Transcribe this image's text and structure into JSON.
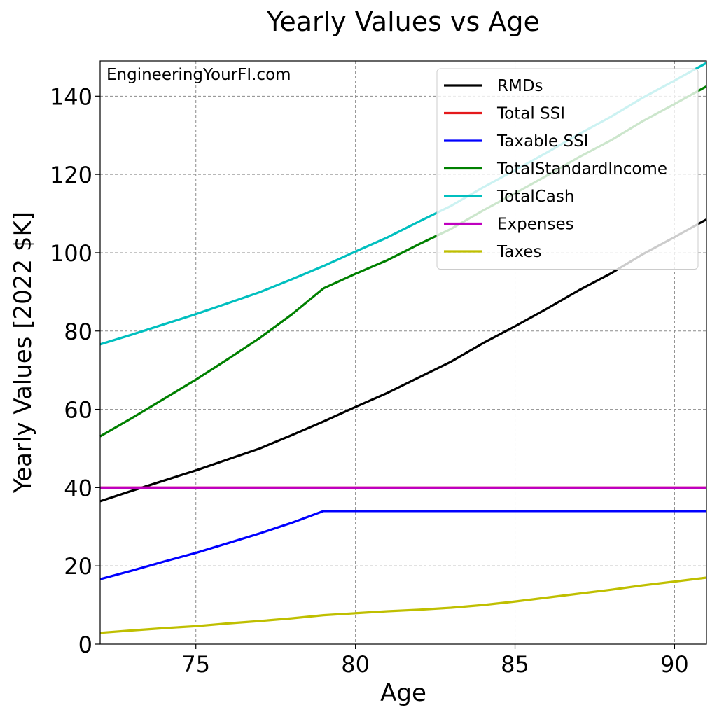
{
  "chart_data": {
    "type": "line",
    "title": "Yearly Values vs Age",
    "xlabel": "Age",
    "ylabel": "Yearly Values [2022 $K]",
    "watermark": "EngineeringYourFI.com",
    "xlim": [
      72,
      91
    ],
    "ylim": [
      0,
      149
    ],
    "xticks": [
      75,
      80,
      85,
      90
    ],
    "yticks": [
      0,
      20,
      40,
      60,
      80,
      100,
      120,
      140
    ],
    "grid": true,
    "legend_position": "top-right",
    "x": [
      72,
      73,
      74,
      75,
      76,
      77,
      78,
      79,
      80,
      81,
      82,
      83,
      84,
      85,
      86,
      87,
      88,
      89,
      90,
      91
    ],
    "series": [
      {
        "name": "RMDs",
        "color": "#000000",
        "values": [
          36.5,
          39.2,
          41.8,
          44.4,
          47.2,
          50.0,
          53.4,
          56.9,
          60.6,
          64.2,
          68.2,
          72.2,
          76.9,
          81.2,
          85.7,
          90.4,
          94.7,
          99.6,
          104.0,
          108.5
        ]
      },
      {
        "name": "Total SSI",
        "color": "#e41a1c",
        "values": [
          40.0,
          40.0,
          40.0,
          40.0,
          40.0,
          40.0,
          40.0,
          40.0,
          40.0,
          40.0,
          40.0,
          40.0,
          40.0,
          40.0,
          40.0,
          40.0,
          40.0,
          40.0,
          40.0,
          40.0
        ]
      },
      {
        "name": "Taxable SSI",
        "color": "#0000ff",
        "values": [
          16.6,
          18.8,
          21.1,
          23.3,
          25.8,
          28.3,
          31.0,
          34.0,
          34.0,
          34.0,
          34.0,
          34.0,
          34.0,
          34.0,
          34.0,
          34.0,
          34.0,
          34.0,
          34.0,
          34.0
        ]
      },
      {
        "name": "TotalStandardIncome",
        "color": "#008000",
        "values": [
          53.1,
          57.8,
          62.7,
          67.6,
          72.8,
          78.2,
          84.2,
          90.9,
          94.6,
          98.1,
          102.2,
          106.1,
          110.8,
          115.2,
          119.7,
          124.4,
          128.7,
          133.6,
          138.0,
          142.5
        ]
      },
      {
        "name": "TotalCash",
        "color": "#00bfbf",
        "values": [
          76.6,
          79.1,
          81.7,
          84.3,
          87.1,
          89.9,
          93.2,
          96.6,
          100.3,
          103.9,
          108.0,
          112.0,
          116.7,
          121.1,
          125.6,
          130.3,
          134.7,
          139.6,
          144.0,
          148.5
        ]
      },
      {
        "name": "Expenses",
        "color": "#bf00bf",
        "values": [
          40.0,
          40.0,
          40.0,
          40.0,
          40.0,
          40.0,
          40.0,
          40.0,
          40.0,
          40.0,
          40.0,
          40.0,
          40.0,
          40.0,
          40.0,
          40.0,
          40.0,
          40.0,
          40.0,
          40.0
        ]
      },
      {
        "name": "Taxes",
        "color": "#bfbf00",
        "values": [
          2.9,
          3.5,
          4.1,
          4.6,
          5.3,
          5.9,
          6.6,
          7.4,
          7.9,
          8.4,
          8.8,
          9.3,
          10.0,
          10.9,
          11.9,
          12.9,
          13.9,
          15.0,
          16.0,
          17.0
        ]
      }
    ]
  }
}
